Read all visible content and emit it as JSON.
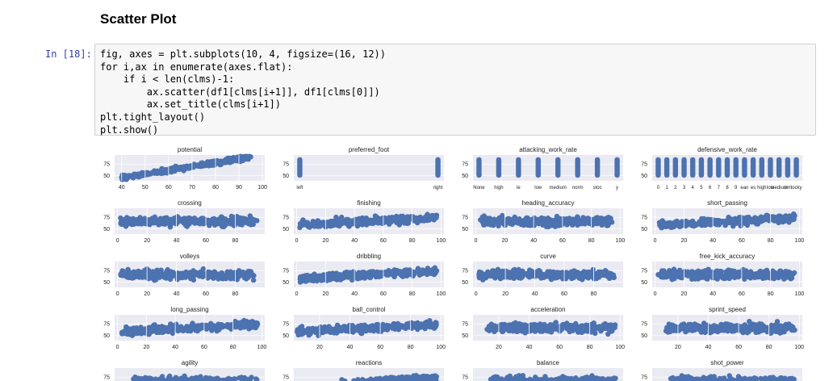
{
  "heading": "Scatter Plot",
  "prompt": "In [18]:",
  "code_lines": [
    "fig, axes = plt.subplots(10, 4, figsize=(16, 12))",
    "for i,ax in enumerate(axes.flat):",
    "    if i < len(clms)-1:",
    "        ax.scatter(df1[clms[i+1]], df1[clms[0]])",
    "        ax.set_title(clms[i+1])",
    "plt.tight_layout()",
    "plt.show()"
  ],
  "colors": {
    "marker": "#4c72b0",
    "axes_bg": "#eaeaf2",
    "grid": "#ffffff",
    "text": "#222222"
  },
  "chart_data": [
    {
      "type": "scatter",
      "title": "potential",
      "x_ticks": [
        "40",
        "50",
        "60",
        "70",
        "80",
        "90",
        "100"
      ],
      "xlim": [
        37,
        101
      ],
      "y_ticks": [
        "75",
        "50"
      ],
      "ylim": [
        38,
        95
      ],
      "shape": "rising",
      "x_range": [
        40,
        95
      ]
    },
    {
      "type": "scatter",
      "title": "preferred_foot",
      "x_ticks": [
        "left",
        "right"
      ],
      "y_ticks": [
        "75",
        "50"
      ],
      "ylim": [
        38,
        95
      ],
      "shape": "categorical",
      "categories": [
        "left",
        "right"
      ]
    },
    {
      "type": "scatter",
      "title": "attacking_work_rate",
      "x_ticks": [
        "None",
        "high",
        "le",
        "low",
        "medium",
        "norm",
        "stoc",
        "y"
      ],
      "y_ticks": [
        "75",
        "50"
      ],
      "ylim": [
        38,
        95
      ],
      "shape": "categorical",
      "categories": [
        "None",
        "high",
        "le",
        "low",
        "medium",
        "norm",
        "stoc",
        "y"
      ]
    },
    {
      "type": "scatter",
      "title": "defensive_work_rate",
      "x_ticks": [
        "0",
        "1",
        "2",
        "3",
        "4",
        "5",
        "6",
        "7",
        "8",
        "9",
        "ean",
        "es",
        "high",
        "low",
        "medium",
        "orm",
        "tocky"
      ],
      "y_ticks": [
        "75",
        "50"
      ],
      "ylim": [
        38,
        95
      ],
      "shape": "categorical",
      "categories": [
        "0",
        "1",
        "2",
        "3",
        "4",
        "5",
        "6",
        "7",
        "8",
        "9",
        "ean",
        "es",
        "high",
        "low",
        "medium",
        "orm",
        "tocky"
      ]
    },
    {
      "type": "scatter",
      "title": "crossing",
      "x_ticks": [
        "0",
        "20",
        "40",
        "60",
        "80"
      ],
      "xlim": [
        -2,
        100
      ],
      "y_ticks": [
        "75",
        "50"
      ],
      "ylim": [
        38,
        95
      ],
      "shape": "band",
      "x_range": [
        2,
        95
      ]
    },
    {
      "type": "scatter",
      "title": "finishing",
      "x_ticks": [
        "0",
        "20",
        "40",
        "60",
        "80",
        "100"
      ],
      "xlim": [
        -2,
        102
      ],
      "y_ticks": [
        "75",
        "50"
      ],
      "ylim": [
        38,
        95
      ],
      "shape": "band-rising",
      "x_range": [
        2,
        97
      ]
    },
    {
      "type": "scatter",
      "title": "heading_accuracy",
      "x_ticks": [
        "0",
        "20",
        "40",
        "60",
        "80",
        "100"
      ],
      "xlim": [
        -2,
        102
      ],
      "y_ticks": [
        "75",
        "50"
      ],
      "ylim": [
        38,
        95
      ],
      "shape": "band",
      "x_range": [
        3,
        95
      ]
    },
    {
      "type": "scatter",
      "title": "short_passing",
      "x_ticks": [
        "0",
        "20",
        "40",
        "60",
        "80",
        "100"
      ],
      "xlim": [
        -2,
        102
      ],
      "y_ticks": [
        "75",
        "50"
      ],
      "ylim": [
        38,
        95
      ],
      "shape": "band-rising",
      "x_range": [
        3,
        97
      ]
    },
    {
      "type": "scatter",
      "title": "volleys",
      "x_ticks": [
        "0",
        "20",
        "40",
        "60",
        "80"
      ],
      "xlim": [
        -2,
        100
      ],
      "y_ticks": [
        "75",
        "50"
      ],
      "ylim": [
        38,
        95
      ],
      "shape": "band",
      "x_range": [
        2,
        93
      ]
    },
    {
      "type": "scatter",
      "title": "dribbling",
      "x_ticks": [
        "0",
        "20",
        "40",
        "60",
        "80",
        "100"
      ],
      "xlim": [
        -2,
        102
      ],
      "y_ticks": [
        "75",
        "50"
      ],
      "ylim": [
        38,
        95
      ],
      "shape": "band-rising",
      "x_range": [
        2,
        97
      ]
    },
    {
      "type": "scatter",
      "title": "curve",
      "x_ticks": [
        "0",
        "20",
        "40",
        "60",
        "80"
      ],
      "xlim": [
        -2,
        100
      ],
      "y_ticks": [
        "75",
        "50"
      ],
      "ylim": [
        38,
        95
      ],
      "shape": "band",
      "x_range": [
        2,
        94
      ]
    },
    {
      "type": "scatter",
      "title": "free_kick_accuracy",
      "x_ticks": [
        "0",
        "20",
        "40",
        "60",
        "80",
        "100"
      ],
      "xlim": [
        -2,
        102
      ],
      "y_ticks": [
        "75",
        "50"
      ],
      "ylim": [
        38,
        95
      ],
      "shape": "band",
      "x_range": [
        2,
        97
      ]
    },
    {
      "type": "scatter",
      "title": "long_passing",
      "x_ticks": [
        "0",
        "20",
        "40",
        "60",
        "80",
        "100"
      ],
      "xlim": [
        -2,
        102
      ],
      "y_ticks": [
        "75",
        "50"
      ],
      "ylim": [
        38,
        95
      ],
      "shape": "band-rising",
      "x_range": [
        3,
        97
      ]
    },
    {
      "type": "scatter",
      "title": "ball_control",
      "x_ticks": [
        "20",
        "40",
        "60",
        "80",
        "100"
      ],
      "xlim": [
        3,
        102
      ],
      "y_ticks": [
        "75",
        "50"
      ],
      "ylim": [
        38,
        95
      ],
      "shape": "band-rising",
      "x_range": [
        5,
        97
      ]
    },
    {
      "type": "scatter",
      "title": "acceleration",
      "x_ticks": [
        "20",
        "40",
        "60",
        "80",
        "100"
      ],
      "xlim": [
        3,
        102
      ],
      "y_ticks": [
        "75",
        "50"
      ],
      "ylim": [
        38,
        95
      ],
      "shape": "band",
      "x_range": [
        12,
        97
      ]
    },
    {
      "type": "scatter",
      "title": "sprint_speed",
      "x_ticks": [
        "20",
        "40",
        "60",
        "80",
        "100"
      ],
      "xlim": [
        3,
        102
      ],
      "y_ticks": [
        "75",
        "50"
      ],
      "ylim": [
        38,
        95
      ],
      "shape": "band",
      "x_range": [
        12,
        97
      ]
    },
    {
      "type": "scatter",
      "title": "agility",
      "x_ticks": [],
      "xlim": [
        -2,
        102
      ],
      "y_ticks": [
        "75"
      ],
      "ylim": [
        38,
        95
      ],
      "shape": "band",
      "x_range": [
        10,
        97
      ]
    },
    {
      "type": "scatter",
      "title": "reactions",
      "x_ticks": [],
      "xlim": [
        -2,
        102
      ],
      "y_ticks": [
        "75"
      ],
      "ylim": [
        38,
        95
      ],
      "shape": "band-rising",
      "x_range": [
        25,
        97
      ]
    },
    {
      "type": "scatter",
      "title": "balance",
      "x_ticks": [],
      "xlim": [
        -2,
        102
      ],
      "y_ticks": [
        "75"
      ],
      "ylim": [
        38,
        95
      ],
      "shape": "band",
      "x_range": [
        10,
        97
      ]
    },
    {
      "type": "scatter",
      "title": "shot_power",
      "x_ticks": [],
      "xlim": [
        -2,
        102
      ],
      "y_ticks": [
        "75"
      ],
      "ylim": [
        38,
        95
      ],
      "shape": "band",
      "x_range": [
        10,
        97
      ]
    }
  ]
}
